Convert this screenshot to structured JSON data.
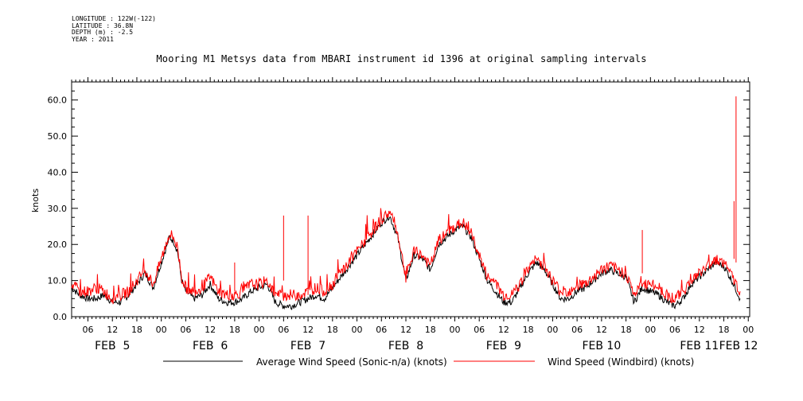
{
  "meta": {
    "longitude": "LONGITUDE : 122W(-122)",
    "latitude": "LATITUDE : 36.8N",
    "depth": "DEPTH (m) : -2.5",
    "year": "YEAR : 2011"
  },
  "chart_data": {
    "type": "line",
    "title": "Mooring M1 Metsys data from MBARI instrument id 1396 at original sampling intervals",
    "ylabel": "knots",
    "xlabel": "",
    "ylim": [
      0,
      65
    ],
    "yticks": [
      0,
      10,
      20,
      30,
      40,
      50,
      60
    ],
    "xlim_hours": [
      2,
      166
    ],
    "hour_ticks": [
      {
        "h": 6,
        "label": "06"
      },
      {
        "h": 12,
        "label": "12"
      },
      {
        "h": 18,
        "label": "18"
      },
      {
        "h": 24,
        "label": "00"
      },
      {
        "h": 30,
        "label": "06"
      },
      {
        "h": 36,
        "label": "12"
      },
      {
        "h": 42,
        "label": "18"
      },
      {
        "h": 48,
        "label": "00"
      },
      {
        "h": 54,
        "label": "06"
      },
      {
        "h": 60,
        "label": "12"
      },
      {
        "h": 66,
        "label": "18"
      },
      {
        "h": 72,
        "label": "00"
      },
      {
        "h": 78,
        "label": "06"
      },
      {
        "h": 84,
        "label": "12"
      },
      {
        "h": 90,
        "label": "18"
      },
      {
        "h": 96,
        "label": "00"
      },
      {
        "h": 102,
        "label": "06"
      },
      {
        "h": 108,
        "label": "12"
      },
      {
        "h": 114,
        "label": "18"
      },
      {
        "h": 120,
        "label": "00"
      },
      {
        "h": 126,
        "label": "06"
      },
      {
        "h": 132,
        "label": "12"
      },
      {
        "h": 138,
        "label": "18"
      },
      {
        "h": 144,
        "label": "00"
      },
      {
        "h": 150,
        "label": "06"
      },
      {
        "h": 156,
        "label": "12"
      },
      {
        "h": 162,
        "label": "18"
      },
      {
        "h": 168,
        "label": "00"
      }
    ],
    "date_labels": [
      {
        "h": 12,
        "label": "FEB  5"
      },
      {
        "h": 36,
        "label": "FEB  6"
      },
      {
        "h": 60,
        "label": "FEB  7"
      },
      {
        "h": 84,
        "label": "FEB  8"
      },
      {
        "h": 108,
        "label": "FEB  9"
      },
      {
        "h": 132,
        "label": "FEB 10"
      },
      {
        "h": 156,
        "label": "FEB 11"
      },
      {
        "h": 175,
        "label": "FEB 12"
      }
    ],
    "series": [
      {
        "name": "Average Wind Speed (Sonic-n/a) (knots)",
        "color": "#000000",
        "x_hours": [
          2,
          4,
          6,
          8,
          10,
          12,
          14,
          16,
          18,
          20,
          22,
          24,
          26,
          27,
          28,
          29,
          30,
          32,
          34,
          36,
          38,
          40,
          42,
          44,
          46,
          48,
          50,
          52,
          54,
          56,
          58,
          60,
          62,
          64,
          66,
          68,
          70,
          72,
          74,
          76,
          78,
          80,
          82,
          84,
          86,
          88,
          90,
          92,
          94,
          96,
          98,
          100,
          102,
          104,
          106,
          108,
          110,
          112,
          114,
          116,
          118,
          120,
          122,
          124,
          126,
          128,
          130,
          132,
          134,
          136,
          138,
          140,
          142,
          144,
          146,
          148,
          150,
          152,
          154,
          156,
          158,
          160,
          162,
          164,
          166
        ],
        "values": [
          8,
          6,
          5,
          5,
          6,
          4,
          4,
          6,
          9,
          12,
          8,
          15,
          22,
          21,
          18,
          10,
          7,
          5,
          6,
          9,
          5,
          4,
          4,
          5,
          7,
          8,
          9,
          4,
          3,
          3,
          4,
          5,
          6,
          5,
          8,
          11,
          14,
          17,
          20,
          23,
          26,
          28,
          22,
          10,
          17,
          16,
          13,
          20,
          22,
          24,
          25,
          22,
          16,
          10,
          7,
          4,
          4,
          8,
          12,
          15,
          13,
          9,
          5,
          5,
          7,
          8,
          10,
          12,
          13,
          12,
          11,
          4,
          8,
          7,
          6,
          4,
          3,
          5,
          9,
          11,
          13,
          15,
          14,
          10,
          5
        ]
      },
      {
        "name": "Wind Speed (Windbird) (knots)",
        "color": "#ff0000",
        "x_hours": [
          2,
          4,
          6,
          8,
          10,
          12,
          14,
          16,
          18,
          20,
          22,
          24,
          26,
          27,
          28,
          29,
          30,
          32,
          34,
          36,
          38,
          40,
          42,
          44,
          46,
          48,
          50,
          52,
          54,
          56,
          58,
          60,
          62,
          64,
          66,
          68,
          70,
          72,
          74,
          76,
          78,
          80,
          82,
          84,
          86,
          88,
          90,
          92,
          94,
          96,
          98,
          100,
          102,
          104,
          106,
          108,
          110,
          112,
          114,
          116,
          118,
          120,
          122,
          124,
          126,
          128,
          130,
          132,
          134,
          136,
          138,
          140,
          142,
          144,
          146,
          148,
          150,
          152,
          154,
          156,
          158,
          160,
          162,
          164,
          166
        ],
        "values": [
          9,
          7,
          7,
          8,
          7,
          5,
          6,
          7,
          10,
          13,
          9,
          16,
          23,
          22,
          19,
          11,
          8,
          7,
          8,
          11,
          7,
          6,
          6,
          7,
          9,
          9,
          10,
          6,
          6,
          6,
          6,
          7,
          8,
          7,
          9,
          12,
          15,
          18,
          21,
          24,
          27,
          29,
          23,
          11,
          18,
          17,
          14,
          21,
          23,
          25,
          26,
          23,
          17,
          11,
          9,
          6,
          6,
          9,
          13,
          16,
          14,
          10,
          7,
          7,
          9,
          9,
          11,
          13,
          14,
          13,
          12,
          6,
          9,
          9,
          8,
          6,
          5,
          7,
          10,
          12,
          14,
          16,
          15,
          11,
          7
        ],
        "spikes": [
          [
            54,
            28
          ],
          [
            60,
            28
          ],
          [
            42,
            15
          ],
          [
            142,
            24
          ],
          [
            165,
            61
          ],
          [
            164.5,
            32
          ]
        ]
      }
    ]
  }
}
